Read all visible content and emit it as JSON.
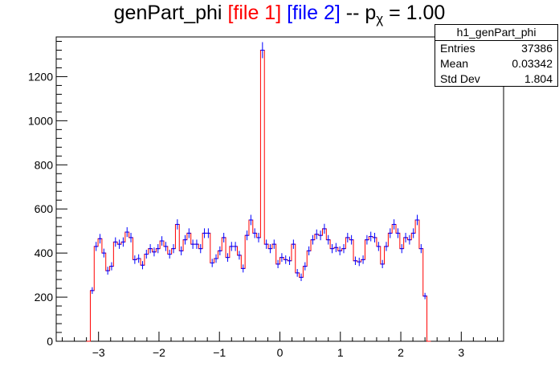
{
  "title": {
    "main": "genPart_phi ",
    "file1": "[file 1]",
    "file2": "[file 2]",
    "suffix_pre": " -- p",
    "suffix_sub": "χ",
    "suffix_post": " = 1.00"
  },
  "stats": {
    "name": "h1_genPart_phi",
    "rows": [
      {
        "label": "Entries",
        "value": "37386"
      },
      {
        "label": "Mean",
        "value": "0.03342"
      },
      {
        "label": "Std Dev",
        "value": "1.804"
      }
    ]
  },
  "colors": {
    "file1": "#ff0000",
    "file2": "#0000ff"
  },
  "chart_data": {
    "type": "histogram",
    "title": "genPart_phi [file 1] [file 2] -- p_χ = 1.00",
    "xlim": [
      -3.7,
      3.7
    ],
    "ylim": [
      0,
      1380
    ],
    "xticks": [
      -3,
      -2,
      -1,
      0,
      1,
      2,
      3
    ],
    "yticks": [
      0,
      200,
      400,
      600,
      800,
      1000,
      1200
    ],
    "bin_low": -3.2,
    "bin_width": 0.064,
    "values": [
      0,
      230,
      430,
      465,
      400,
      320,
      340,
      450,
      440,
      450,
      495,
      470,
      370,
      375,
      345,
      395,
      420,
      405,
      420,
      455,
      430,
      395,
      420,
      530,
      410,
      460,
      490,
      440,
      440,
      420,
      490,
      490,
      355,
      375,
      410,
      470,
      380,
      430,
      430,
      390,
      330,
      480,
      550,
      490,
      470,
      1320,
      440,
      420,
      440,
      350,
      380,
      370,
      365,
      440,
      310,
      290,
      340,
      410,
      460,
      485,
      480,
      510,
      460,
      420,
      425,
      410,
      420,
      470,
      460,
      365,
      360,
      370,
      460,
      475,
      470,
      430,
      350,
      430,
      490,
      530,
      490,
      420,
      470,
      460,
      490,
      550,
      420,
      205,
      0
    ],
    "errors_shown": true
  }
}
